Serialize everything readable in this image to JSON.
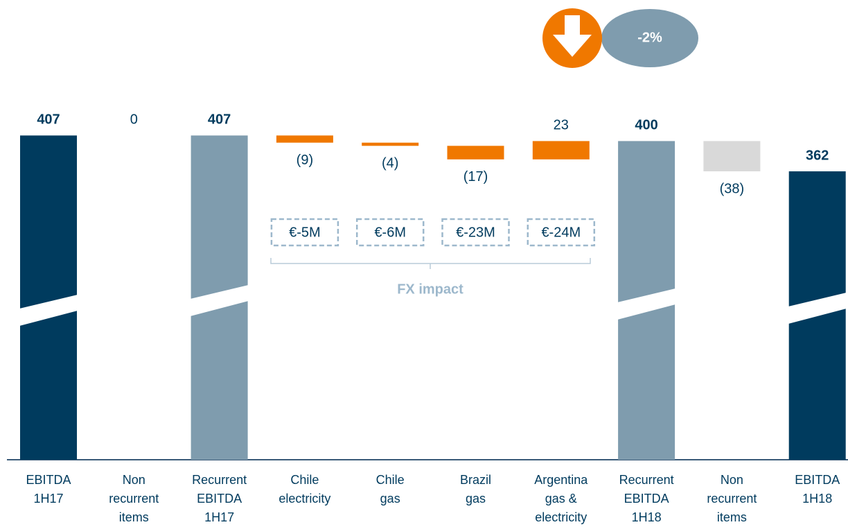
{
  "chart_data": {
    "type": "waterfall",
    "categories": [
      [
        "EBITDA",
        "1H17"
      ],
      [
        "Non",
        "recurrent",
        "items"
      ],
      [
        "Recurrent",
        "EBITDA",
        "1H17"
      ],
      [
        "Chile",
        "electricity"
      ],
      [
        "Chile",
        "gas"
      ],
      [
        "Brazil",
        "gas"
      ],
      [
        "Argentina",
        "gas &",
        "electricity"
      ],
      [
        "Recurrent",
        "EBITDA",
        "1H18"
      ],
      [
        "Non",
        "recurrent",
        "items"
      ],
      [
        "EBITDA",
        "1H18"
      ]
    ],
    "values": [
      407,
      0,
      407,
      -9,
      -4,
      -17,
      23,
      400,
      -38,
      362
    ],
    "value_labels": [
      "407",
      "0",
      "407",
      "(9)",
      "(4)",
      "(17)",
      "23",
      "400",
      "(38)",
      "362"
    ],
    "totals": [
      true,
      false,
      true,
      false,
      false,
      false,
      false,
      true,
      false,
      true
    ],
    "colors": [
      "#003b5e",
      "#d9d9d9",
      "#7f9cae",
      "#f07800",
      "#f07800",
      "#f07800",
      "#f07800",
      "#7f9cae",
      "#d9d9d9",
      "#003b5e"
    ],
    "ylim": [
      0,
      470
    ],
    "fx_impact": {
      "labels": [
        "€-5M",
        "€-6M",
        "€-23M",
        "€-24M"
      ],
      "caption": "FX impact"
    },
    "badge": "-2%"
  }
}
